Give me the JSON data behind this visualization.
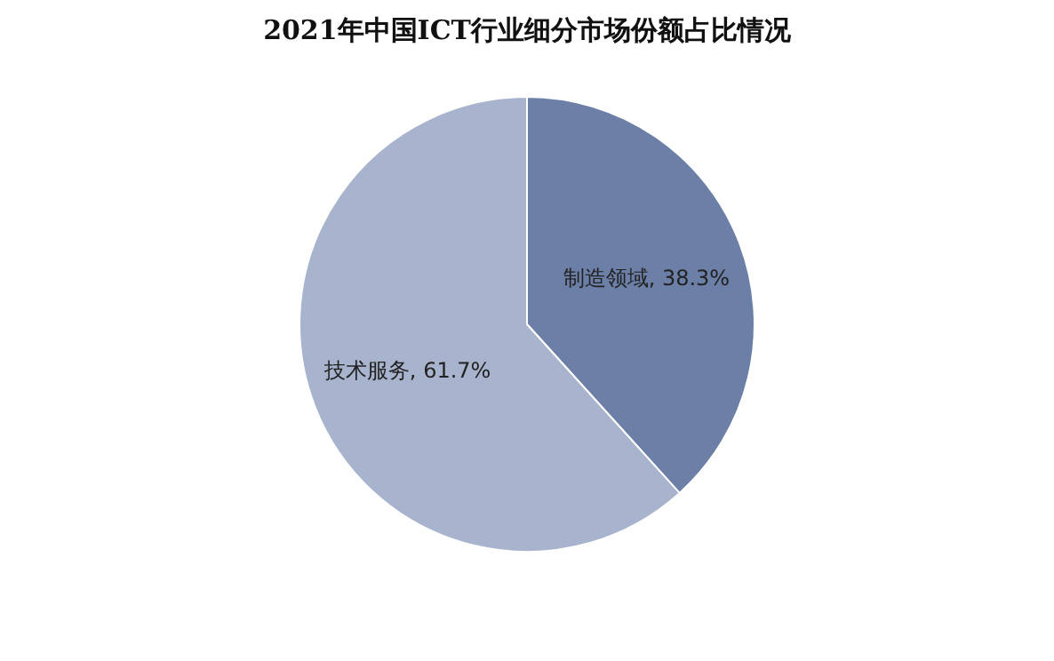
{
  "chart_data": {
    "type": "pie",
    "title": "2021年中国ICT行业细分市场份额占比情况",
    "categories": [
      "制造领域",
      "技术服务"
    ],
    "values": [
      38.3,
      61.7
    ],
    "colors": [
      "#6b7fa7",
      "#a8b4cd"
    ],
    "value_labels": [
      "38.3%",
      "61.7%"
    ],
    "legend": false
  }
}
